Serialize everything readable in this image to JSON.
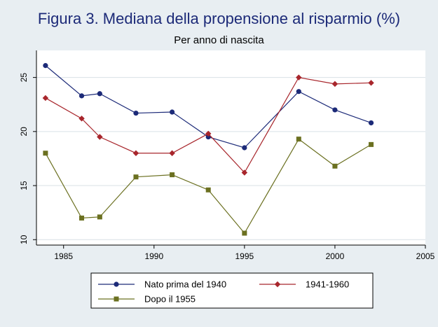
{
  "title": "Figura 3. Mediana della propensione al risparmio (%)",
  "subtitle": "Per anno di nascita",
  "chart_data": {
    "type": "line",
    "title": "Figura 3. Mediana della propensione al risparmio (%)",
    "subtitle": "Per anno di nascita",
    "xlabel": "",
    "ylabel": "",
    "xlim": [
      1983.5,
      2005
    ],
    "ylim": [
      9.5,
      27.5
    ],
    "xticks": [
      1985,
      1990,
      1995,
      2000,
      2005
    ],
    "yticks": [
      10,
      15,
      20,
      25
    ],
    "grid": "horizontal",
    "legend_position": "bottom",
    "series": [
      {
        "name": "Nato prima del 1940",
        "color": "#1c2a78",
        "marker": "circle",
        "x": [
          1984,
          1986,
          1987,
          1989,
          1991,
          1993,
          1995,
          1998,
          2000,
          2002
        ],
        "values": [
          26.1,
          23.3,
          23.5,
          21.7,
          21.8,
          19.5,
          18.5,
          23.7,
          22.0,
          20.8
        ]
      },
      {
        "name": "1941-1960",
        "color": "#a8262c",
        "marker": "diamond",
        "x": [
          1984,
          1986,
          1987,
          1989,
          1991,
          1993,
          1995,
          1998,
          2000,
          2002
        ],
        "values": [
          23.1,
          21.2,
          19.5,
          18.0,
          18.0,
          19.8,
          16.2,
          25.0,
          24.4,
          24.5
        ]
      },
      {
        "name": "Dopo il 1955",
        "color": "#6b7020",
        "marker": "square",
        "x": [
          1984,
          1986,
          1987,
          1989,
          1991,
          1993,
          1995,
          1998,
          2000,
          2002
        ],
        "values": [
          18.0,
          12.0,
          12.1,
          15.8,
          16.0,
          14.6,
          10.6,
          19.3,
          16.8,
          18.8
        ]
      }
    ]
  },
  "colors": {
    "background": "#e8eef2",
    "plot_background": "#ffffff",
    "grid": "#d9e0e6",
    "title": "#1c2a78"
  }
}
